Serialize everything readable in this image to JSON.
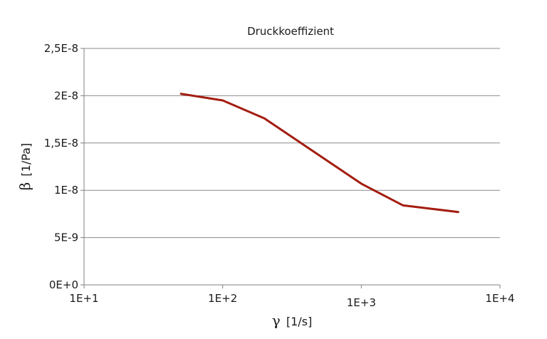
{
  "chart_data": {
    "type": "line",
    "title": "Druckkoeffizient",
    "xlabel_symbol": "γ",
    "xlabel_unit": "[1/s]",
    "ylabel_symbol": "β",
    "ylabel_unit": "[1/Pa]",
    "x_scale": "log",
    "xlim": [
      10,
      10000
    ],
    "ylim": [
      0,
      2.5e-08
    ],
    "x_ticks": [
      10,
      100,
      1000,
      10000
    ],
    "x_tick_labels": [
      "1E+1",
      "1E+2",
      "1E+3",
      "1E+4"
    ],
    "y_ticks": [
      0,
      5e-09,
      1e-08,
      1.5e-08,
      2e-08,
      2.5e-08
    ],
    "y_tick_labels": [
      "0E+0",
      "5E-9",
      "1E-8",
      "1,5E-8",
      "2E-8",
      "2,5E-8"
    ],
    "grid": "horizontal",
    "series": [
      {
        "color": "#a31d10",
        "x": [
          50,
          100,
          200,
          1000,
          2000,
          5000
        ],
        "y": [
          2.02e-08,
          1.95e-08,
          1.76e-08,
          1.07e-08,
          8.4e-09,
          7.7e-09
        ]
      }
    ]
  }
}
